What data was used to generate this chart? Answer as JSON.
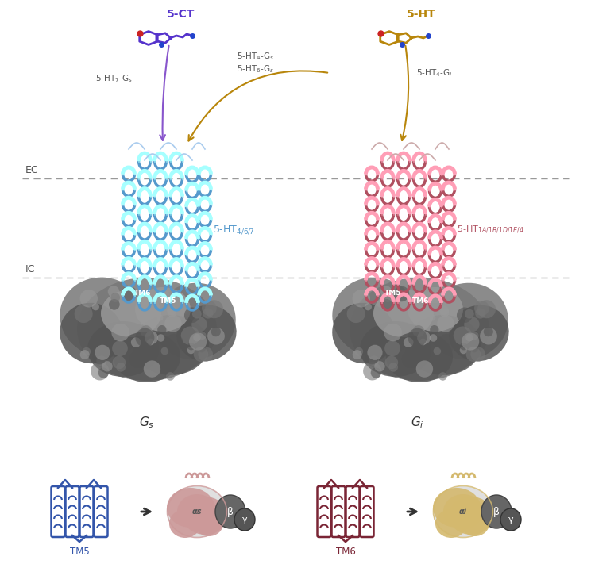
{
  "bg_color": "#ffffff",
  "ec_label": "EC",
  "ic_label": "IC",
  "ligand_left_label": "5-CT",
  "ligand_right_label": "5-HT",
  "ligand_left_color": "#5533cc",
  "ligand_right_color": "#b8860b",
  "receptor_left_label": "5-HT$_{4/6/7}$",
  "receptor_right_label": "5-HT$_{1A/1B/1D/1E/4}$",
  "receptor_left_color": "#5599cc",
  "receptor_right_color": "#b05060",
  "arrow1_label": "5-HT$_7$-G$_s$",
  "arrow2_label": "5-HT$_4$-G$_s$",
  "arrow3_label": "5-HT$_6$-G$_s$",
  "arrow4_label": "5-HT$_4$-G$_i$",
  "arrow_color_purple": "#8855cc",
  "arrow_color_gold": "#b8860b",
  "gs_diag_color": "#cc9999",
  "gi_diag_color": "#d4b96e",
  "tm_left_color": "#3355aa",
  "tm_right_color": "#7a2535",
  "dashed_line_color": "#999999",
  "gprotein_color": "#777777",
  "gprotein_dark": "#555555",
  "gprotein_light": "#999999"
}
